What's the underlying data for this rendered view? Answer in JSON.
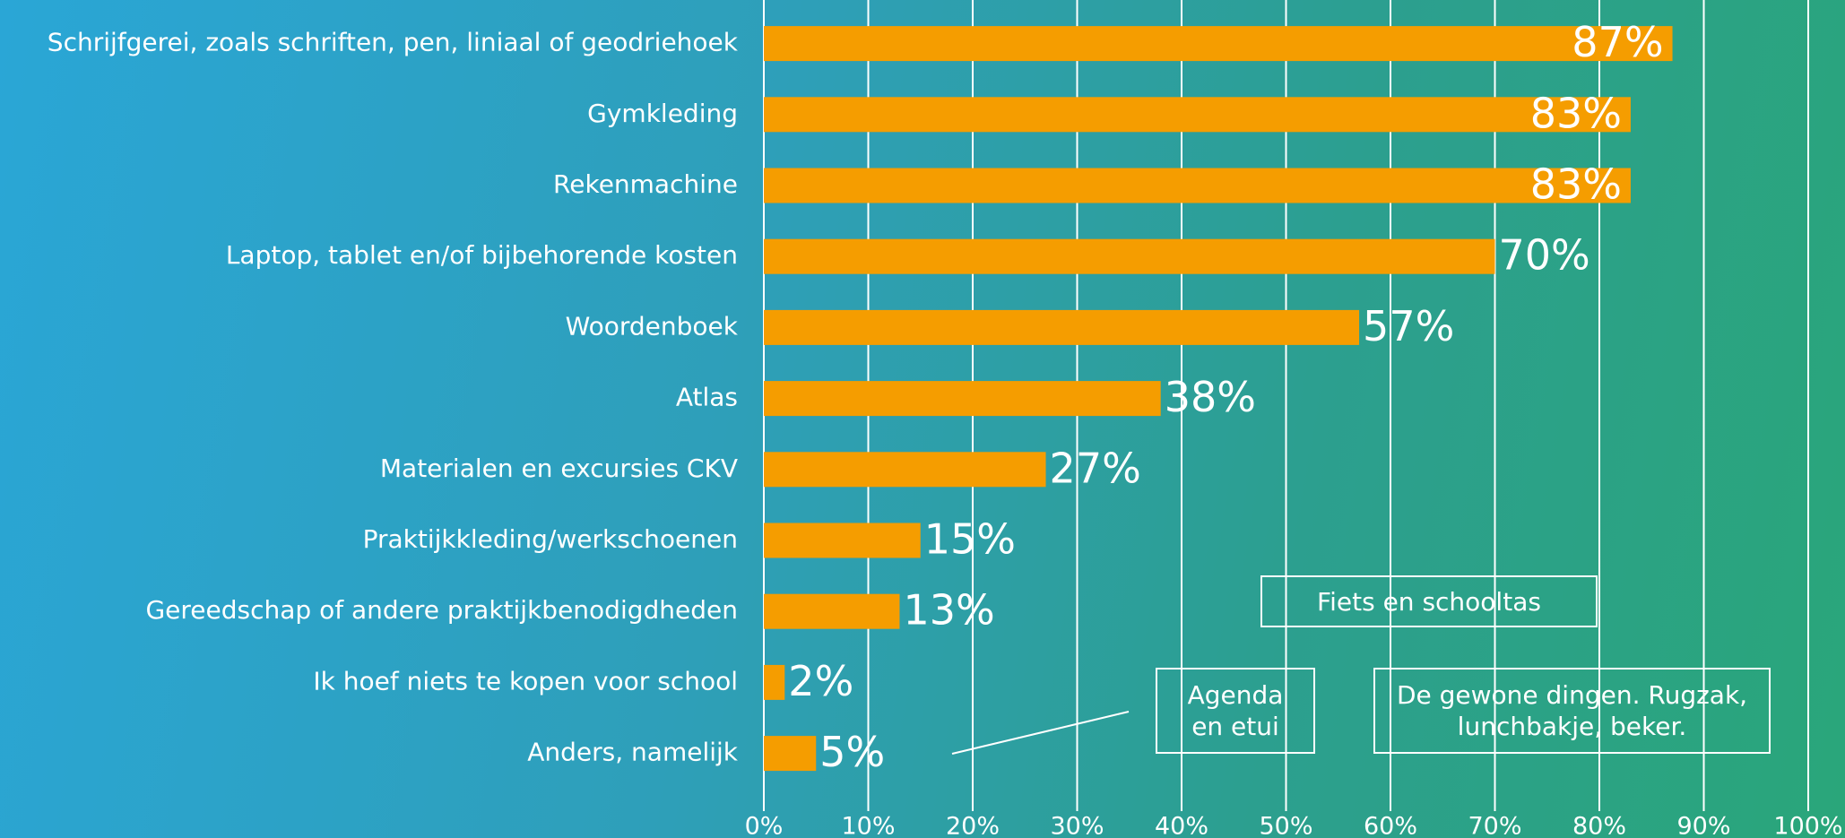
{
  "chart_data": {
    "type": "bar",
    "orientation": "horizontal",
    "categories": [
      "Schrijfgerei, zoals schriften, pen, liniaal of geodriehoek",
      "Gymkleding",
      "Rekenmachine",
      "Laptop, tablet en/of bijbehorende kosten",
      "Woordenboek",
      "Atlas",
      "Materialen en excursies CKV",
      "Praktijkkleding/werkschoenen",
      "Gereedschap of andere praktijkbenodigdheden",
      "Ik hoef niets te kopen voor school",
      "Anders, namelijk"
    ],
    "values": [
      87,
      83,
      83,
      70,
      57,
      38,
      27,
      15,
      13,
      2,
      5
    ],
    "value_labels": [
      "87%",
      "83%",
      "83%",
      "70%",
      "57%",
      "38%",
      "27%",
      "15%",
      "13%",
      "2%",
      "5%"
    ],
    "color": "#f59d00",
    "xlim": [
      0,
      100
    ],
    "xticks": [
      {
        "value": 0,
        "label": "0%"
      },
      {
        "value": 10,
        "label": "10%"
      },
      {
        "value": 20,
        "label": "20%"
      },
      {
        "value": 30,
        "label": "30%"
      },
      {
        "value": 40,
        "label": "40%"
      },
      {
        "value": 50,
        "label": "50%"
      },
      {
        "value": 60,
        "label": "60%"
      },
      {
        "value": 70,
        "label": "70%"
      },
      {
        "value": 80,
        "label": "80%"
      },
      {
        "value": 90,
        "label": "90%"
      },
      {
        "value": 100,
        "label": "100%"
      }
    ],
    "grid": true,
    "annotations": [
      "Fiets en schooltas",
      "Agenda en etui",
      "De gewone dingen. Rugzak, lunchbakje, beker."
    ]
  }
}
